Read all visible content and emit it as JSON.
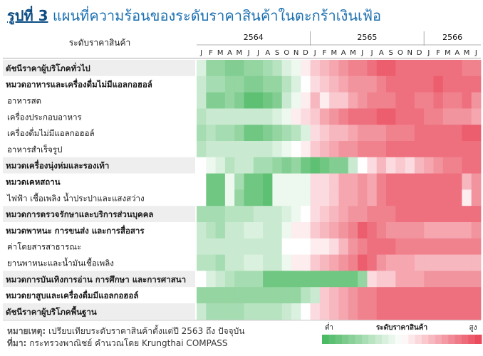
{
  "title": {
    "figure": "รูปที่ 3",
    "text": "แผนที่ความร้อนของระดับราคาสินค้าในตะกร้าเงินเฟ้อ"
  },
  "chart_data": {
    "type": "heatmap",
    "row_header": "ระดับราคาสินค้า",
    "years": [
      {
        "label": "2564",
        "months": 12
      },
      {
        "label": "2565",
        "months": 12
      },
      {
        "label": "2566",
        "months": 6
      }
    ],
    "months": [
      "J",
      "F",
      "M",
      "A",
      "M",
      "J",
      "J",
      "A",
      "S",
      "O",
      "N",
      "D",
      "J",
      "F",
      "M",
      "A",
      "M",
      "J",
      "J",
      "A",
      "S",
      "O",
      "N",
      "D",
      "J",
      "F",
      "M",
      "A",
      "M",
      "J"
    ],
    "rows": [
      {
        "label": "ดัชนีราคาผู้บริโภคทั่วไป",
        "bold": true,
        "shaded": true,
        "values": [
          -0.2,
          -0.6,
          -0.6,
          -0.7,
          -0.7,
          -0.6,
          -0.6,
          -0.5,
          -0.4,
          -0.2,
          -0.1,
          0.1,
          0.3,
          0.4,
          0.5,
          0.6,
          0.7,
          0.7,
          0.8,
          0.9,
          0.9,
          0.8,
          0.8,
          0.8,
          0.8,
          0.8,
          0.8,
          0.8,
          0.7,
          0.7
        ]
      },
      {
        "label": "หมวดอาหารและเครื่องดื่มไม่มีแอลกอฮอล์",
        "bold": true,
        "shaded": false,
        "values": [
          -0.3,
          -0.5,
          -0.5,
          -0.6,
          -0.6,
          -0.7,
          -0.7,
          -0.6,
          -0.6,
          -0.4,
          -0.2,
          0.0,
          0.2,
          0.3,
          0.4,
          0.5,
          0.6,
          0.6,
          0.6,
          0.7,
          0.8,
          0.8,
          0.8,
          0.8,
          0.8,
          0.9,
          0.8,
          0.8,
          0.8,
          0.8
        ]
      },
      {
        "label": "อาหารสด",
        "bold": false,
        "shaded": false,
        "values": [
          -0.3,
          -0.7,
          -0.7,
          -0.6,
          -0.7,
          -0.9,
          -0.9,
          -0.8,
          -0.7,
          -0.3,
          -0.1,
          0.1,
          0.4,
          0.1,
          0.3,
          0.3,
          0.5,
          0.6,
          0.7,
          0.7,
          0.7,
          0.8,
          0.8,
          0.7,
          0.7,
          0.8,
          0.7,
          0.7,
          0.8,
          0.6
        ]
      },
      {
        "label": "เครื่องประกอบอาหาร",
        "bold": false,
        "shaded": false,
        "values": [
          -0.4,
          -0.3,
          -0.3,
          -0.3,
          -0.3,
          -0.3,
          -0.3,
          -0.3,
          -0.2,
          -0.1,
          0.1,
          0.2,
          0.3,
          0.5,
          0.6,
          0.7,
          0.8,
          0.8,
          0.8,
          0.9,
          0.9,
          0.8,
          0.8,
          0.8,
          0.7,
          0.7,
          0.6,
          0.6,
          0.6,
          0.5
        ]
      },
      {
        "label": "เครื่องดื่มไม่มีแอลกอฮอล์",
        "bold": false,
        "shaded": false,
        "values": [
          -0.5,
          -0.4,
          -0.5,
          -0.5,
          -0.6,
          -0.8,
          -0.8,
          -0.7,
          -0.6,
          -0.5,
          -0.4,
          -0.2,
          0.2,
          0.3,
          0.4,
          0.4,
          0.5,
          0.6,
          0.6,
          0.6,
          0.7,
          0.7,
          0.7,
          0.8,
          0.8,
          0.8,
          0.8,
          0.8,
          0.9,
          0.9
        ]
      },
      {
        "label": "อาหารสำเร็จรูป",
        "bold": false,
        "shaded": false,
        "values": [
          -0.4,
          -0.3,
          -0.3,
          -0.3,
          -0.3,
          -0.3,
          -0.3,
          -0.3,
          -0.2,
          -0.1,
          0.0,
          0.1,
          0.3,
          0.4,
          0.5,
          0.6,
          0.6,
          0.7,
          0.7,
          0.7,
          0.8,
          0.8,
          0.8,
          0.8,
          0.8,
          0.8,
          0.8,
          0.8,
          0.8,
          0.8
        ]
      },
      {
        "label": "หมวดเครื่องนุ่งห่มและรองเท้า",
        "bold": true,
        "shaded": true,
        "values": [
          0.0,
          -0.1,
          -0.2,
          -0.4,
          -0.3,
          -0.3,
          -0.5,
          -0.5,
          -0.6,
          -0.7,
          -0.6,
          -0.8,
          -0.9,
          -0.8,
          -0.7,
          -0.7,
          -0.3,
          0.0,
          0.2,
          0.4,
          0.2,
          0.3,
          0.2,
          0.4,
          0.5,
          0.6,
          0.7,
          0.7,
          0.8,
          0.8
        ]
      },
      {
        "label": "หมวดเคหสถาน",
        "bold": true,
        "shaded": false,
        "values": [
          0.0,
          -0.8,
          -0.8,
          -0.1,
          -0.5,
          -0.8,
          -0.8,
          -0.9,
          -0.1,
          -0.1,
          -0.1,
          -0.1,
          0.2,
          0.2,
          0.3,
          0.5,
          0.5,
          0.6,
          0.5,
          0.7,
          0.8,
          0.8,
          0.8,
          0.8,
          0.8,
          0.8,
          0.8,
          0.8,
          0.4,
          0.6
        ]
      },
      {
        "label": "ไฟฟ้า เชื้อเพลิง น้ำประปาและแสงสว่าง",
        "bold": false,
        "shaded": false,
        "values": [
          0.0,
          -0.8,
          -0.8,
          -0.1,
          -0.6,
          -0.8,
          -0.8,
          -0.9,
          -0.1,
          -0.1,
          -0.1,
          -0.1,
          0.2,
          0.2,
          0.3,
          0.5,
          0.5,
          0.6,
          0.5,
          0.7,
          0.8,
          0.8,
          0.8,
          0.8,
          0.8,
          0.8,
          0.8,
          0.8,
          0.1,
          0.6
        ]
      },
      {
        "label": "หมวดการตรวจรักษาและบริการส่วนบุคคล",
        "bold": true,
        "shaded": true,
        "values": [
          -0.5,
          -0.5,
          -0.5,
          -0.4,
          -0.4,
          -0.4,
          -0.3,
          -0.3,
          -0.3,
          -0.2,
          -0.1,
          0.0,
          0.2,
          0.3,
          0.4,
          0.5,
          0.6,
          0.6,
          0.7,
          0.7,
          0.7,
          0.8,
          0.8,
          0.8,
          0.8,
          0.8,
          0.8,
          0.8,
          0.8,
          0.8
        ]
      },
      {
        "label": "หมวดพาหนะ การขนส่ง และการสื่อสาร",
        "bold": true,
        "shaded": false,
        "values": [
          -0.3,
          -0.4,
          -0.5,
          -0.3,
          -0.3,
          -0.2,
          -0.2,
          -0.3,
          -0.3,
          -0.1,
          0.1,
          0.1,
          0.3,
          0.4,
          0.5,
          0.6,
          0.7,
          0.9,
          0.8,
          0.7,
          0.6,
          0.6,
          0.6,
          0.6,
          0.5,
          0.5,
          0.5,
          0.5,
          0.5,
          0.6
        ]
      },
      {
        "label": "ค่าโดยสารสาธารณะ",
        "bold": false,
        "shaded": false,
        "values": [
          -0.3,
          -0.3,
          -0.3,
          -0.3,
          -0.3,
          -0.3,
          -0.3,
          -0.3,
          -0.3,
          0.0,
          0.0,
          0.0,
          0.1,
          0.1,
          0.2,
          0.4,
          0.6,
          0.7,
          0.8,
          0.8,
          0.8,
          0.7,
          0.7,
          0.7,
          0.7,
          0.7,
          0.7,
          0.7,
          0.7,
          0.7
        ]
      },
      {
        "label": "ยานพาหนะและน้ำมันเชื้อเพลิง",
        "bold": false,
        "shaded": false,
        "values": [
          -0.4,
          -0.4,
          -0.5,
          -0.3,
          -0.3,
          -0.2,
          -0.2,
          -0.3,
          -0.3,
          -0.1,
          0.1,
          0.1,
          0.3,
          0.4,
          0.5,
          0.6,
          0.7,
          0.9,
          0.8,
          0.6,
          0.5,
          0.5,
          0.5,
          0.4,
          0.4,
          0.4,
          0.4,
          0.4,
          0.4,
          0.4
        ]
      },
      {
        "label": "หมวดการบันเทิงการอ่าน การศึกษา และการศาสนา",
        "bold": true,
        "shaded": true,
        "values": [
          0.0,
          -0.2,
          -0.3,
          -0.4,
          -0.5,
          -0.5,
          -0.5,
          -0.8,
          -0.8,
          -0.8,
          -0.8,
          -0.8,
          -0.8,
          -0.8,
          -0.8,
          -0.8,
          -0.8,
          -0.6,
          0.2,
          0.3,
          0.3,
          0.5,
          0.5,
          0.5,
          0.6,
          0.6,
          0.6,
          0.6,
          0.6,
          0.6
        ]
      },
      {
        "label": "หมวดยาสูบและเครื่องดื่มมีแอลกอฮอล์",
        "bold": true,
        "shaded": false,
        "values": [
          -0.6,
          -0.6,
          -0.6,
          -0.6,
          -0.6,
          -0.6,
          -0.6,
          -0.6,
          -0.6,
          -0.6,
          -0.6,
          -0.4,
          -0.3,
          0.3,
          0.4,
          0.5,
          0.6,
          0.7,
          0.7,
          0.8,
          0.8,
          0.8,
          0.8,
          0.8,
          0.8,
          0.8,
          0.8,
          0.8,
          0.8,
          0.8
        ]
      },
      {
        "label": "ดัชนีราคาผู้บริโภคพื้นฐาน",
        "bold": true,
        "shaded": true,
        "values": [
          -0.3,
          -0.5,
          -0.5,
          -0.5,
          -0.5,
          -0.4,
          -0.4,
          -0.4,
          -0.4,
          -0.3,
          -0.2,
          0.0,
          0.2,
          0.3,
          0.4,
          0.5,
          0.6,
          0.7,
          0.7,
          0.8,
          0.8,
          0.8,
          0.8,
          0.8,
          0.8,
          0.8,
          0.8,
          0.8,
          0.8,
          0.8
        ]
      }
    ],
    "legend": {
      "title": "ระดับราคาสินค้า",
      "low": "ต่ำ",
      "high": "สูง"
    },
    "colors": {
      "low": "#4cb963",
      "mid": "#ffffff",
      "high": "#ea4c5e",
      "header_text": "#1a1a1a",
      "row_shade": "#eeeeee"
    }
  },
  "note": {
    "remark_label": "หมายเหตุ:",
    "remark_text": "เปรียบเทียบระดับราคาสินค้าตั้งแต่ปี 2563 ถึง ปัจจุบัน",
    "source_label": "ที่มา:",
    "source_text": "กระทรวงพาณิชย์ คำนวณโดย Krungthai COMPASS"
  }
}
